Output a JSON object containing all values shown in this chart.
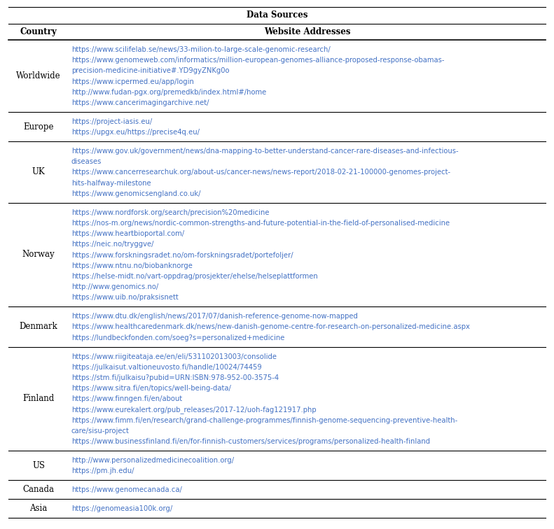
{
  "title": "Data Sources",
  "col1_header": "Country",
  "col2_header": "Website Addresses",
  "link_color": "#4472C4",
  "header_color": "#000000",
  "bg_color": "#ffffff",
  "rows": [
    {
      "country": "Worldwide",
      "urls": [
        "https://www.scilifelab.se/news/33-milion-to-large-scale-genomic-research/",
        "https://www.genomeweb.com/informatics/million-european-genomes-alliance-proposed-response-obamas-\nprecision-medicine-initiative#.YD9gyZNKg0o",
        "https://www.icpermed.eu/app/login",
        "http://www.fudan-pgx.org/premedkb/index.html#/home",
        "https://www.cancerimagingarchive.net/"
      ]
    },
    {
      "country": "Europe",
      "urls": [
        "https://project-iasis.eu/",
        "https://upgx.eu/https://precise4q.eu/"
      ]
    },
    {
      "country": "UK",
      "urls": [
        "https://www.gov.uk/government/news/dna-mapping-to-better-understand-cancer-rare-diseases-and-infectious-\ndiseases",
        "https://www.cancerresearchuk.org/about-us/cancer-news/news-report/2018-02-21-100000-genomes-project-\nhits-halfway-milestone",
        "https://www.genomicsengland.co.uk/"
      ]
    },
    {
      "country": "Norway",
      "urls": [
        "https://www.nordforsk.org/search/precision%20medicine",
        "https://nos-m.org/news/nordic-common-strengths-and-future-potential-in-the-field-of-personalised-medicine",
        "https://www.heartbioportal.com/",
        "https://neic.no/tryggve/",
        "https://www.forskningsradet.no/om-forskningsradet/portefoljer/",
        "https://www.ntnu.no/biobanknorge",
        "https://helse-midt.no/vart-oppdrag/prosjekter/ehelse/helseplattformen",
        "http://www.genomics.no/",
        "https://www.uib.no/praksisnett"
      ]
    },
    {
      "country": "Denmark",
      "urls": [
        "https://www.dtu.dk/english/news/2017/07/danish-reference-genome-now-mapped",
        "https://www.healthcaredenmark.dk/news/new-danish-genome-centre-for-research-on-personalized-medicine.aspx",
        "https://lundbeckfonden.com/soeg?s=personalized+medicine"
      ]
    },
    {
      "country": "Finland",
      "urls": [
        "https://www.riigiteataja.ee/en/eli/531102013003/consolide",
        "https://julkaisut.valtioneuvosto.fi/handle/10024/74459",
        "https://stm.fi/julkaisu?pubid=URN:ISBN:978-952-00-3575-4",
        "https://www.sitra.fi/en/topics/well-being-data/",
        "https://www.finngen.fi/en/about",
        "https://www.eurekalert.org/pub_releases/2017-12/uoh-fag121917.php",
        "https://www.fimm.fi/en/research/grand-challenge-programmes/finnish-genome-sequencing-preventive-health-\ncare/sisu-project",
        "https://www.businessfinland.fi/en/for-finnish-customers/services/programs/personalized-health-finland"
      ]
    },
    {
      "country": "US",
      "urls": [
        "http://www.personalizedmedicinecoalition.org/",
        "https://pm.jh.edu/"
      ]
    },
    {
      "country": "Canada",
      "urls": [
        "https://www.genomecanada.ca/"
      ]
    },
    {
      "country": "Asia",
      "urls": [
        "https://genomeasia100k.org/"
      ]
    }
  ]
}
